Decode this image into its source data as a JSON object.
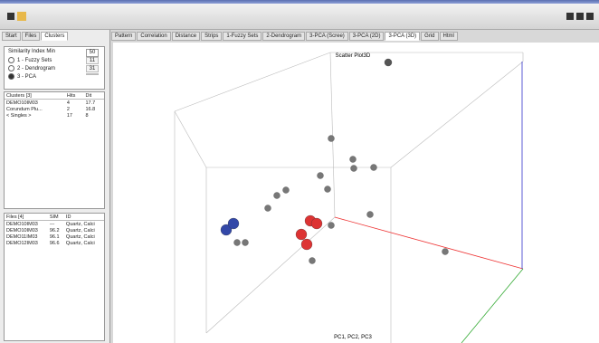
{
  "left_tabs": [
    "Start",
    "Files",
    "Clusters"
  ],
  "similarity": {
    "label": "Similarity Index Min",
    "value": "50"
  },
  "modes": [
    {
      "label": "1 - Fuzzy Sets",
      "value": "11"
    },
    {
      "label": "2 - Dendrogram",
      "value": "31"
    },
    {
      "label": "3 - PCA",
      "value": ""
    }
  ],
  "clusters": {
    "headers": [
      "Clusters [3]",
      "Hits",
      "Dit"
    ],
    "rows": [
      [
        "DEMO10IM03",
        "4",
        "17.7"
      ],
      [
        "Corundum Plu...",
        "2",
        "16.8"
      ],
      [
        "< Singles >",
        "17",
        "8"
      ]
    ]
  },
  "files": {
    "headers": [
      "Files [4]",
      "SIM",
      "ID"
    ],
    "rows": [
      [
        "DEMO10IM03",
        "---",
        "Quartz, Calci"
      ],
      [
        "DEMO10IM03",
        "96.2",
        "Quartz, Calci"
      ],
      [
        "DEMO11IM03",
        "96.1",
        "Quartz, Calci"
      ],
      [
        "DEMO12IM03",
        "96.6",
        "Quartz, Calci"
      ]
    ]
  },
  "top_tabs": [
    "Pattern",
    "Correlation",
    "Distance",
    "Strips",
    "1-Fuzzy Sets",
    "2-Dendrogram",
    "3-PCA (Scree)",
    "3-PCA (2D)",
    "3-PCA (3D)",
    "Grid",
    "Html"
  ],
  "plot": {
    "title": "Scatter Plot3D",
    "axes_label": "PC1, PC2, PC3"
  }
}
